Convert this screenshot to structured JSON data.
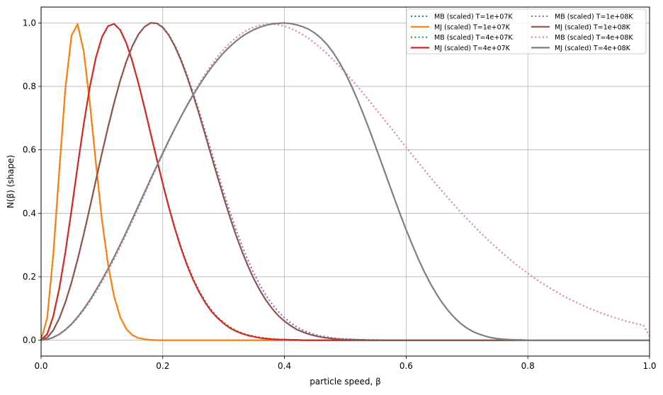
{
  "chart_data": {
    "type": "line",
    "title": "",
    "xlabel": "particle speed, β",
    "ylabel": "N(β) (shape)",
    "xlim": [
      0.0,
      1.0
    ],
    "ylim": [
      -0.05,
      1.05
    ],
    "xticks": [
      "0.0",
      "0.2",
      "0.4",
      "0.6",
      "0.8",
      "1.0"
    ],
    "yticks": [
      "0.0",
      "0.2",
      "0.4",
      "0.6",
      "0.8",
      "1.0"
    ],
    "grid": true,
    "legend_position": "top-right",
    "legend_columns": 2,
    "x": [
      0.0,
      0.01,
      0.02,
      0.03,
      0.04,
      0.05,
      0.06,
      0.07,
      0.08,
      0.09,
      0.1,
      0.11,
      0.12,
      0.13,
      0.14,
      0.15,
      0.16,
      0.17,
      0.18,
      0.19,
      0.2,
      0.21,
      0.22,
      0.23,
      0.24,
      0.25,
      0.26,
      0.27,
      0.28,
      0.29,
      0.3,
      0.31,
      0.32,
      0.33,
      0.34,
      0.35,
      0.36,
      0.37,
      0.38,
      0.39,
      0.4,
      0.41,
      0.42,
      0.43,
      0.44,
      0.45,
      0.46,
      0.47,
      0.48,
      0.49,
      0.5,
      0.51,
      0.52,
      0.53,
      0.54,
      0.55,
      0.56,
      0.57,
      0.58,
      0.59,
      0.6,
      0.61,
      0.62,
      0.63,
      0.64,
      0.65,
      0.66,
      0.67,
      0.68,
      0.69,
      0.7,
      0.71,
      0.72,
      0.73,
      0.74,
      0.75,
      0.76,
      0.77,
      0.78,
      0.79,
      0.8,
      0.81,
      0.82,
      0.83,
      0.84,
      0.85,
      0.86,
      0.87,
      0.88,
      0.89,
      0.9,
      0.91,
      0.92,
      0.93,
      0.94,
      0.95,
      0.96,
      0.97,
      0.98,
      0.99,
      1.0
    ],
    "series": [
      {
        "name": "MB (scaled) T=1e+07K",
        "color": "#1f77b4",
        "style": "dotted",
        "values": [
          0.0,
          0.07,
          0.268,
          0.537,
          0.795,
          0.96,
          0.996,
          0.912,
          0.75,
          0.56,
          0.38,
          0.24,
          0.138,
          0.073,
          0.036,
          0.016,
          0.007,
          0.003,
          0.001,
          0.0,
          0.0,
          0.0,
          0.0,
          0.0,
          0.0,
          0.0,
          0.0,
          0.0,
          0.0,
          0.0,
          0.0,
          0.0,
          0.0,
          0.0,
          0.0,
          0.0,
          0.0,
          0.0,
          0.0,
          0.0,
          0.0,
          0.0,
          0.0,
          0.0,
          0.0,
          0.0,
          0.0,
          0.0,
          0.0,
          0.0,
          0.0,
          0.0,
          0.0,
          0.0,
          0.0,
          0.0,
          0.0,
          0.0,
          0.0,
          0.0,
          0.0,
          0.0,
          0.0,
          0.0,
          0.0,
          0.0,
          0.0,
          0.0,
          0.0,
          0.0,
          0.0,
          0.0,
          0.0,
          0.0,
          0.0,
          0.0,
          0.0,
          0.0,
          0.0,
          0.0,
          0.0,
          0.0,
          0.0,
          0.0,
          0.0,
          0.0,
          0.0,
          0.0,
          0.0,
          0.0,
          0.0,
          0.0,
          0.0,
          0.0,
          0.0,
          0.0,
          0.0,
          0.0,
          0.0,
          0.0,
          0.0
        ]
      },
      {
        "name": "MJ (scaled) T=1e+07K",
        "color": "#ff7f0e",
        "style": "solid",
        "values": [
          0.0,
          0.07,
          0.268,
          0.537,
          0.795,
          0.96,
          0.996,
          0.912,
          0.75,
          0.56,
          0.38,
          0.24,
          0.138,
          0.073,
          0.036,
          0.016,
          0.007,
          0.003,
          0.001,
          0.0,
          0.0,
          0.0,
          0.0,
          0.0,
          0.0,
          0.0,
          0.0,
          0.0,
          0.0,
          0.0,
          0.0,
          0.0,
          0.0,
          0.0,
          0.0,
          0.0,
          0.0,
          0.0,
          0.0,
          0.0,
          0.0,
          0.0,
          0.0,
          0.0,
          0.0,
          0.0,
          0.0,
          0.0,
          0.0,
          0.0,
          0.0,
          0.0,
          0.0,
          0.0,
          0.0,
          0.0,
          0.0,
          0.0,
          0.0,
          0.0,
          0.0,
          0.0,
          0.0,
          0.0,
          0.0,
          0.0,
          0.0,
          0.0,
          0.0,
          0.0,
          0.0,
          0.0,
          0.0,
          0.0,
          0.0,
          0.0,
          0.0,
          0.0,
          0.0,
          0.0,
          0.0,
          0.0,
          0.0,
          0.0,
          0.0,
          0.0,
          0.0,
          0.0,
          0.0,
          0.0,
          0.0,
          0.0,
          0.0,
          0.0,
          0.0,
          0.0,
          0.0,
          0.0,
          0.0,
          0.0,
          0.0
        ]
      },
      {
        "name": "MB (scaled) T=4e+07K",
        "color": "#2ca02c",
        "style": "dotted",
        "values": [
          0.0,
          0.019,
          0.075,
          0.164,
          0.278,
          0.41,
          0.548,
          0.68,
          0.797,
          0.89,
          0.955,
          0.99,
          0.997,
          0.978,
          0.937,
          0.879,
          0.81,
          0.733,
          0.652,
          0.572,
          0.494,
          0.421,
          0.354,
          0.293,
          0.24,
          0.194,
          0.155,
          0.122,
          0.095,
          0.073,
          0.056,
          0.042,
          0.031,
          0.023,
          0.017,
          0.012,
          0.009,
          0.006,
          0.004,
          0.003,
          0.002,
          0.001,
          0.001,
          0.0,
          0.0,
          0.0,
          0.0,
          0.0,
          0.0,
          0.0,
          0.0,
          0.0,
          0.0,
          0.0,
          0.0,
          0.0,
          0.0,
          0.0,
          0.0,
          0.0,
          0.0,
          0.0,
          0.0,
          0.0,
          0.0,
          0.0,
          0.0,
          0.0,
          0.0,
          0.0,
          0.0,
          0.0,
          0.0,
          0.0,
          0.0,
          0.0,
          0.0,
          0.0,
          0.0,
          0.0,
          0.0,
          0.0,
          0.0,
          0.0,
          0.0,
          0.0,
          0.0,
          0.0,
          0.0,
          0.0,
          0.0,
          0.0,
          0.0,
          0.0,
          0.0,
          0.0,
          0.0,
          0.0,
          0.0,
          0.0,
          0.0
        ]
      },
      {
        "name": "MJ (scaled) T=4e+07K",
        "color": "#d62728",
        "style": "solid",
        "values": [
          0.0,
          0.019,
          0.075,
          0.164,
          0.278,
          0.41,
          0.548,
          0.68,
          0.797,
          0.89,
          0.955,
          0.99,
          0.997,
          0.978,
          0.937,
          0.879,
          0.81,
          0.733,
          0.652,
          0.572,
          0.493,
          0.419,
          0.351,
          0.29,
          0.236,
          0.19,
          0.151,
          0.118,
          0.091,
          0.07,
          0.053,
          0.039,
          0.029,
          0.021,
          0.015,
          0.011,
          0.007,
          0.005,
          0.003,
          0.002,
          0.002,
          0.001,
          0.001,
          0.0,
          0.0,
          0.0,
          0.0,
          0.0,
          0.0,
          0.0,
          0.0,
          0.0,
          0.0,
          0.0,
          0.0,
          0.0,
          0.0,
          0.0,
          0.0,
          0.0,
          0.0,
          0.0,
          0.0,
          0.0,
          0.0,
          0.0,
          0.0,
          0.0,
          0.0,
          0.0,
          0.0,
          0.0,
          0.0,
          0.0,
          0.0,
          0.0,
          0.0,
          0.0,
          0.0,
          0.0,
          0.0,
          0.0,
          0.0,
          0.0,
          0.0,
          0.0,
          0.0,
          0.0,
          0.0,
          0.0,
          0.0,
          0.0,
          0.0,
          0.0,
          0.0,
          0.0,
          0.0,
          0.0,
          0.0,
          0.0,
          0.0
        ]
      },
      {
        "name": "MB (scaled) T=1e+08K",
        "color": "#9467bd",
        "style": "dotted",
        "values": [
          0.0,
          0.008,
          0.031,
          0.069,
          0.12,
          0.182,
          0.254,
          0.333,
          0.417,
          0.503,
          0.588,
          0.671,
          0.748,
          0.817,
          0.877,
          0.926,
          0.963,
          0.988,
          1.0,
          0.999,
          0.987,
          0.963,
          0.929,
          0.886,
          0.836,
          0.78,
          0.72,
          0.657,
          0.593,
          0.529,
          0.467,
          0.407,
          0.351,
          0.299,
          0.252,
          0.21,
          0.173,
          0.14,
          0.113,
          0.09,
          0.071,
          0.055,
          0.042,
          0.032,
          0.024,
          0.018,
          0.013,
          0.01,
          0.007,
          0.005,
          0.004,
          0.003,
          0.002,
          0.001,
          0.001,
          0.001,
          0.0,
          0.0,
          0.0,
          0.0,
          0.0,
          0.0,
          0.0,
          0.0,
          0.0,
          0.0,
          0.0,
          0.0,
          0.0,
          0.0,
          0.0,
          0.0,
          0.0,
          0.0,
          0.0,
          0.0,
          0.0,
          0.0,
          0.0,
          0.0,
          0.0,
          0.0,
          0.0,
          0.0,
          0.0,
          0.0,
          0.0,
          0.0,
          0.0,
          0.0,
          0.0,
          0.0,
          0.0,
          0.0,
          0.0,
          0.0,
          0.0,
          0.0,
          0.0,
          0.0,
          0.0
        ]
      },
      {
        "name": "MJ (scaled) T=1e+08K",
        "color": "#8c564b",
        "style": "solid",
        "values": [
          0.0,
          0.008,
          0.031,
          0.069,
          0.12,
          0.182,
          0.254,
          0.333,
          0.417,
          0.503,
          0.589,
          0.671,
          0.748,
          0.818,
          0.878,
          0.927,
          0.964,
          0.988,
          1.0,
          0.999,
          0.986,
          0.961,
          0.926,
          0.882,
          0.83,
          0.773,
          0.711,
          0.646,
          0.58,
          0.515,
          0.451,
          0.39,
          0.333,
          0.281,
          0.234,
          0.192,
          0.156,
          0.125,
          0.099,
          0.077,
          0.06,
          0.046,
          0.034,
          0.026,
          0.019,
          0.014,
          0.01,
          0.007,
          0.005,
          0.003,
          0.002,
          0.002,
          0.001,
          0.001,
          0.0,
          0.0,
          0.0,
          0.0,
          0.0,
          0.0,
          0.0,
          0.0,
          0.0,
          0.0,
          0.0,
          0.0,
          0.0,
          0.0,
          0.0,
          0.0,
          0.0,
          0.0,
          0.0,
          0.0,
          0.0,
          0.0,
          0.0,
          0.0,
          0.0,
          0.0,
          0.0,
          0.0,
          0.0,
          0.0,
          0.0,
          0.0,
          0.0,
          0.0,
          0.0,
          0.0,
          0.0,
          0.0,
          0.0,
          0.0,
          0.0,
          0.0,
          0.0,
          0.0,
          0.0,
          0.0,
          0.0
        ]
      },
      {
        "name": "MB (scaled) T=4e+08K",
        "color": "#e377c2",
        "style": "dotted",
        "values": [
          0.0,
          0.002,
          0.008,
          0.018,
          0.032,
          0.049,
          0.07,
          0.094,
          0.121,
          0.151,
          0.184,
          0.219,
          0.255,
          0.294,
          0.334,
          0.375,
          0.417,
          0.459,
          0.502,
          0.544,
          0.586,
          0.627,
          0.667,
          0.705,
          0.742,
          0.777,
          0.81,
          0.84,
          0.868,
          0.894,
          0.916,
          0.936,
          0.953,
          0.967,
          0.979,
          0.987,
          0.993,
          0.996,
          0.996,
          0.994,
          0.99,
          0.983,
          0.974,
          0.963,
          0.951,
          0.936,
          0.92,
          0.903,
          0.884,
          0.864,
          0.844,
          0.822,
          0.8,
          0.777,
          0.753,
          0.729,
          0.705,
          0.681,
          0.657,
          0.632,
          0.608,
          0.584,
          0.56,
          0.537,
          0.513,
          0.49,
          0.468,
          0.446,
          0.424,
          0.403,
          0.383,
          0.363,
          0.343,
          0.325,
          0.306,
          0.289,
          0.272,
          0.256,
          0.24,
          0.225,
          0.211,
          0.197,
          0.184,
          0.172,
          0.16,
          0.149,
          0.138,
          0.128,
          0.119,
          0.11,
          0.101,
          0.094,
          0.086,
          0.079,
          0.073,
          0.067,
          0.061,
          0.056,
          0.051,
          0.047,
          0.013
        ]
      },
      {
        "name": "MJ (scaled) T=4e+08K",
        "color": "#7f7f7f",
        "style": "solid",
        "values": [
          0.0,
          0.002,
          0.009,
          0.019,
          0.033,
          0.051,
          0.073,
          0.098,
          0.126,
          0.157,
          0.19,
          0.225,
          0.262,
          0.301,
          0.341,
          0.382,
          0.424,
          0.466,
          0.508,
          0.549,
          0.59,
          0.63,
          0.668,
          0.705,
          0.74,
          0.773,
          0.804,
          0.833,
          0.86,
          0.884,
          0.906,
          0.925,
          0.942,
          0.957,
          0.969,
          0.979,
          0.987,
          0.993,
          0.997,
          0.999,
          1.0,
          0.998,
          0.994,
          0.988,
          0.98,
          0.968,
          0.952,
          0.932,
          0.907,
          0.877,
          0.842,
          0.802,
          0.758,
          0.711,
          0.661,
          0.609,
          0.556,
          0.503,
          0.45,
          0.398,
          0.348,
          0.301,
          0.256,
          0.215,
          0.178,
          0.145,
          0.116,
          0.091,
          0.07,
          0.052,
          0.038,
          0.027,
          0.019,
          0.013,
          0.008,
          0.005,
          0.003,
          0.002,
          0.001,
          0.001,
          0.0,
          0.0,
          0.0,
          0.0,
          0.0,
          0.0,
          0.0,
          0.0,
          0.0,
          0.0,
          0.0,
          0.0,
          0.0,
          0.0,
          0.0,
          0.0,
          0.0,
          0.0,
          0.0,
          0.0,
          0.0
        ]
      }
    ]
  }
}
